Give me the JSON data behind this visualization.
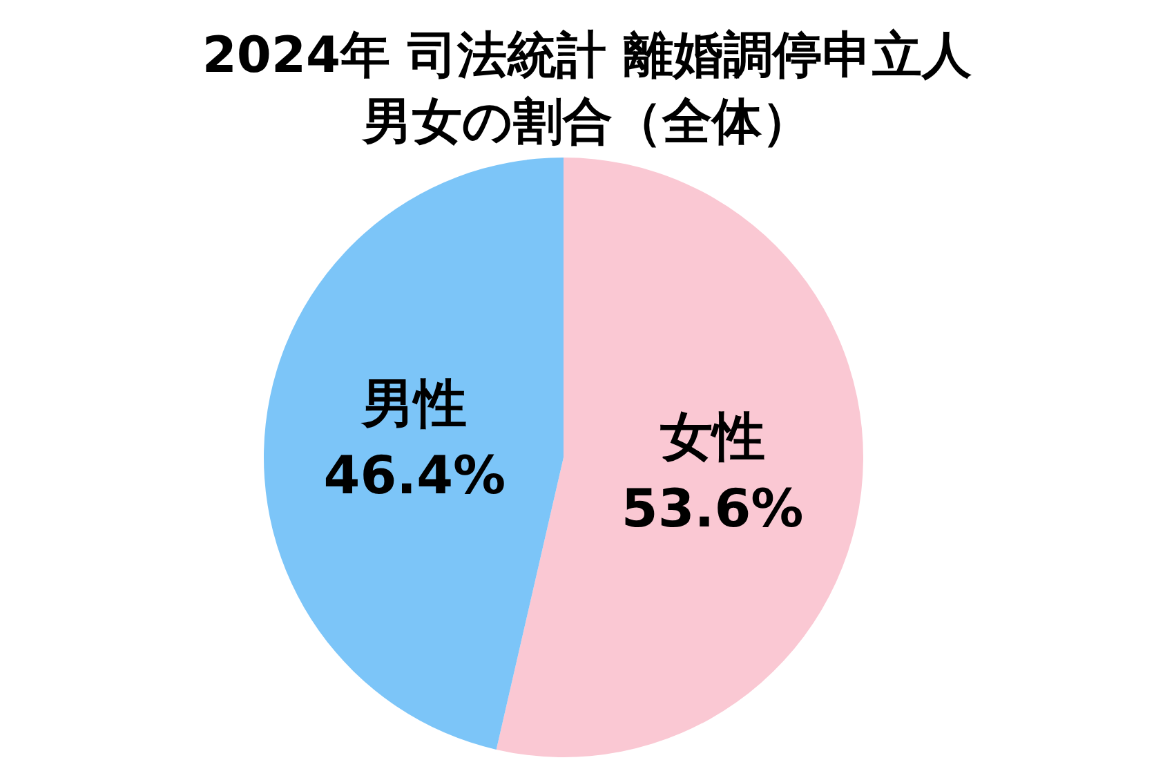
{
  "chart_data": {
    "type": "pie",
    "title": "2024年 司法統計 離婚調停申立人",
    "subtitle": "男女の割合（全体）",
    "categories": [
      "女性",
      "男性"
    ],
    "values": [
      53.6,
      46.4
    ],
    "colors": [
      "#fac8d3",
      "#7cc5f8"
    ],
    "value_labels": [
      "53.6%",
      "46.4%"
    ]
  }
}
